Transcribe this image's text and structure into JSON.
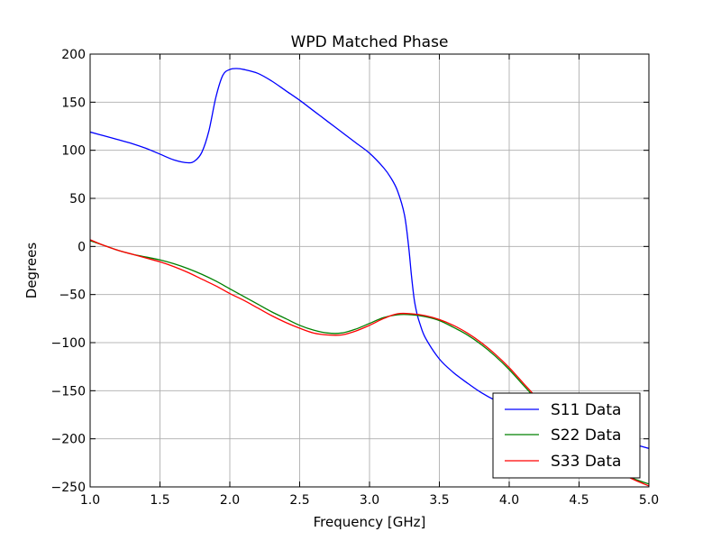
{
  "chart_data": {
    "type": "line",
    "title": "WPD Matched Phase",
    "xlabel": "Frequency [GHz]",
    "ylabel": "Degrees",
    "xlim": [
      1.0,
      5.0
    ],
    "ylim": [
      -250,
      200
    ],
    "xticks": [
      "1.0",
      "1.5",
      "2.0",
      "2.5",
      "3.0",
      "3.5",
      "4.0",
      "4.5",
      "5.0"
    ],
    "yticks": [
      "200",
      "150",
      "100",
      "50",
      "0",
      "−50",
      "−100",
      "−150",
      "−200",
      "−250"
    ],
    "grid": true,
    "legend_position": "lower-right",
    "series": [
      {
        "name": "S11 Data",
        "color": "#0000ff",
        "x": [
          1.0,
          1.1,
          1.2,
          1.3,
          1.4,
          1.5,
          1.6,
          1.7,
          1.75,
          1.8,
          1.85,
          1.9,
          1.95,
          2.0,
          2.05,
          2.1,
          2.2,
          2.3,
          2.4,
          2.5,
          2.6,
          2.7,
          2.8,
          2.9,
          3.0,
          3.1,
          3.15,
          3.2,
          3.25,
          3.28,
          3.3,
          3.32,
          3.34,
          3.36,
          3.4,
          3.5,
          3.6,
          3.7,
          3.8,
          3.9,
          4.0,
          4.1,
          4.2,
          4.3,
          4.4,
          4.5,
          4.6,
          4.7,
          4.8,
          4.9,
          5.0
        ],
        "y": [
          119,
          115,
          111,
          107,
          102,
          96,
          90,
          87,
          89,
          98,
          120,
          155,
          178,
          184,
          185,
          184,
          180,
          172,
          162,
          152,
          141,
          130,
          119,
          108,
          97,
          82,
          72,
          58,
          33,
          0,
          -30,
          -55,
          -70,
          -80,
          -95,
          -117,
          -131,
          -142,
          -152,
          -160,
          -166,
          -172,
          -177,
          -182,
          -186,
          -190,
          -194,
          -198,
          -202,
          -206,
          -210
        ]
      },
      {
        "name": "S22 Data",
        "color": "#008000",
        "x": [
          1.0,
          1.1,
          1.2,
          1.3,
          1.4,
          1.5,
          1.6,
          1.7,
          1.8,
          1.9,
          2.0,
          2.1,
          2.2,
          2.3,
          2.4,
          2.5,
          2.6,
          2.7,
          2.8,
          2.9,
          3.0,
          3.1,
          3.2,
          3.3,
          3.4,
          3.5,
          3.6,
          3.7,
          3.8,
          3.9,
          4.0,
          4.1,
          4.2,
          4.3,
          4.4,
          4.5,
          4.6,
          4.7,
          4.8,
          4.9,
          5.0
        ],
        "y": [
          6,
          1,
          -4,
          -8,
          -11,
          -14,
          -18,
          -23,
          -29,
          -36,
          -44,
          -52,
          -60,
          -68,
          -75,
          -82,
          -87,
          -90,
          -90,
          -86,
          -80,
          -74,
          -71,
          -71,
          -73,
          -77,
          -84,
          -92,
          -102,
          -114,
          -128,
          -144,
          -160,
          -176,
          -192,
          -207,
          -219,
          -228,
          -236,
          -242,
          -247
        ]
      },
      {
        "name": "S33 Data",
        "color": "#ff0000",
        "x": [
          1.0,
          1.1,
          1.2,
          1.3,
          1.4,
          1.5,
          1.6,
          1.7,
          1.8,
          1.9,
          2.0,
          2.1,
          2.2,
          2.3,
          2.4,
          2.5,
          2.6,
          2.7,
          2.8,
          2.9,
          3.0,
          3.1,
          3.2,
          3.3,
          3.4,
          3.5,
          3.6,
          3.7,
          3.8,
          3.9,
          4.0,
          4.1,
          4.2,
          4.3,
          4.4,
          4.5,
          4.6,
          4.7,
          4.8,
          4.9,
          5.0
        ],
        "y": [
          7,
          1,
          -4,
          -8,
          -12,
          -16,
          -21,
          -27,
          -34,
          -41,
          -49,
          -56,
          -64,
          -72,
          -79,
          -85,
          -90,
          -92,
          -92,
          -88,
          -82,
          -75,
          -70,
          -70,
          -72,
          -76,
          -82,
          -90,
          -100,
          -112,
          -126,
          -142,
          -158,
          -175,
          -191,
          -206,
          -218,
          -228,
          -236,
          -243,
          -249
        ]
      }
    ]
  }
}
